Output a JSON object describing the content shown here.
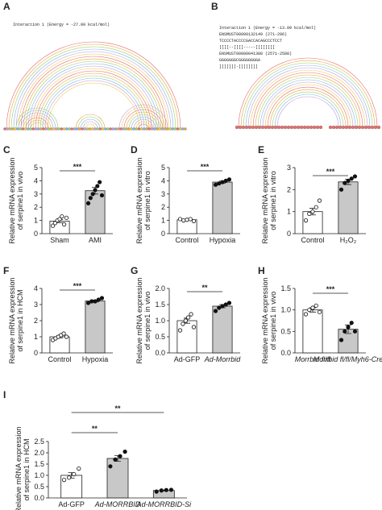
{
  "panel_a": {
    "label": "A",
    "text": [
      "Interaction 1 (Energy = -27.09 kcal/mol)"
    ]
  },
  "panel_b": {
    "label": "B",
    "text": [
      "Interaction 1 (Energy = -13.09 kcal/mol)",
      "ENSMUST00000132149 (271-296)",
      "TCCCCTACCCCGACCACAGCCCTCCT",
      "[[[[--[[[[-----[[[[[[[[",
      "ENSMUST00000041388 (2571-2588)",
      "GGGGGGGCGGGGGGGGA",
      "]]]]]]]-]]]]]]]]"
    ]
  },
  "chart_data": [
    {
      "type": "bar",
      "label": "C",
      "ylabel": [
        "Relative mRNA expression",
        "of serpine1 in vivo"
      ],
      "categories": [
        "Sham",
        "AMI"
      ],
      "values": [
        0.95,
        3.25
      ],
      "errors": [
        0.12,
        0.25
      ],
      "points": [
        [
          0.6,
          0.8,
          1.0,
          1.1,
          1.3,
          0.7,
          1.2
        ],
        [
          2.3,
          2.7,
          3.0,
          3.3,
          3.6,
          3.9,
          2.9
        ]
      ],
      "colors": [
        "#ffffff",
        "#c8c8c8"
      ],
      "ylim": [
        0,
        5
      ],
      "yticks": [
        0,
        1,
        2,
        3,
        4,
        5
      ],
      "significance": [
        {
          "from": 0,
          "to": 1,
          "label": "***"
        }
      ]
    },
    {
      "type": "bar",
      "label": "D",
      "ylabel": [
        "Relative mRNA expression",
        "of serpine1 in vitro"
      ],
      "categories": [
        "Control",
        "Hypoxia"
      ],
      "values": [
        1.05,
        3.9
      ],
      "errors": [
        0.05,
        0.08
      ],
      "points": [
        [
          1.1,
          1.0,
          1.05,
          1.1,
          0.95
        ],
        [
          3.7,
          3.8,
          3.9,
          4.0,
          4.1
        ]
      ],
      "colors": [
        "#ffffff",
        "#c8c8c8"
      ],
      "ylim": [
        0,
        5
      ],
      "yticks": [
        0,
        1,
        2,
        3,
        4,
        5
      ],
      "significance": [
        {
          "from": 0,
          "to": 1,
          "label": "***"
        }
      ]
    },
    {
      "type": "bar",
      "label": "E",
      "ylabel": [
        "Relative mRNA expression",
        "of serpine1 in vitro"
      ],
      "categories": [
        "Control",
        "H₂O₂"
      ],
      "values": [
        1.0,
        2.35
      ],
      "errors": [
        0.15,
        0.12
      ],
      "points": [
        [
          0.6,
          0.9,
          1.0,
          1.2,
          1.5
        ],
        [
          2.0,
          2.3,
          2.4,
          2.5,
          2.6
        ]
      ],
      "colors": [
        "#ffffff",
        "#c8c8c8"
      ],
      "ylim": [
        0,
        3
      ],
      "yticks": [
        0,
        1,
        2,
        3
      ],
      "significance": [
        {
          "from": 0,
          "to": 1,
          "label": "***"
        }
      ]
    },
    {
      "type": "bar",
      "label": "F",
      "ylabel": [
        "Relative mRNA expression",
        "of serpine1 in HCM"
      ],
      "categories": [
        "Control",
        "Hypoxia"
      ],
      "values": [
        1.0,
        3.22
      ],
      "errors": [
        0.08,
        0.06
      ],
      "points": [
        [
          0.8,
          0.9,
          1.0,
          1.1,
          1.2,
          1.0
        ],
        [
          3.1,
          3.2,
          3.2,
          3.3,
          3.4
        ]
      ],
      "colors": [
        "#ffffff",
        "#c8c8c8"
      ],
      "ylim": [
        0,
        4
      ],
      "yticks": [
        0,
        1,
        2,
        3,
        4
      ],
      "significance": [
        {
          "from": 0,
          "to": 1,
          "label": "***"
        }
      ]
    },
    {
      "type": "bar",
      "label": "G",
      "ylabel": [
        "Relative mRNA expression",
        "of serpine1 in vivo"
      ],
      "categories": [
        "Ad-GFP",
        "Ad-Morrbid"
      ],
      "values": [
        1.0,
        1.45
      ],
      "errors": [
        0.08,
        0.05
      ],
      "points": [
        [
          0.7,
          0.9,
          1.0,
          1.1,
          1.2,
          0.8
        ],
        [
          1.3,
          1.4,
          1.45,
          1.5,
          1.55
        ]
      ],
      "colors": [
        "#ffffff",
        "#c8c8c8"
      ],
      "ylim": [
        0,
        2
      ],
      "yticks": [
        {
          "value": 0,
          "label": "0.0"
        },
        {
          "value": 0.5,
          "label": "0.5"
        },
        {
          "value": 1,
          "label": "1.0"
        },
        {
          "value": 1.5,
          "label": "1.5"
        },
        {
          "value": 2,
          "label": "2.0"
        }
      ],
      "significance": [
        {
          "from": 0,
          "to": 1,
          "label": "**"
        }
      ]
    },
    {
      "type": "bar",
      "label": "H",
      "ylabel": [
        "Relative mRNA expression",
        "of serpine1 in vivo"
      ],
      "categories": [
        "Morrbid fl/fl",
        "Morrbid fl/fl/Myh6-Cre"
      ],
      "values": [
        1.0,
        0.55
      ],
      "errors": [
        0.05,
        0.1
      ],
      "points": [
        [
          0.9,
          1.0,
          1.05,
          1.1,
          0.95
        ],
        [
          0.3,
          0.5,
          0.6,
          0.7,
          0.5
        ]
      ],
      "colors": [
        "#ffffff",
        "#c8c8c8"
      ],
      "ylim": [
        0,
        1.5
      ],
      "yticks": [
        {
          "value": 0,
          "label": "0.0"
        },
        {
          "value": 0.5,
          "label": "0.5"
        },
        {
          "value": 1,
          "label": "1.0"
        },
        {
          "value": 1.5,
          "label": "1.5"
        }
      ],
      "significance": [
        {
          "from": 0,
          "to": 1,
          "label": "***"
        }
      ]
    },
    {
      "type": "bar",
      "label": "I",
      "ylabel": [
        "Relative mRNA expression",
        "of serpine1 in HCM"
      ],
      "categories": [
        "Ad-GFP",
        "Ad-MORRBID",
        "Ad-MORRBID-Si"
      ],
      "values": [
        1.0,
        1.75,
        0.33
      ],
      "errors": [
        0.12,
        0.13,
        0.02
      ],
      "points": [
        [
          0.8,
          0.9,
          1.05,
          1.3
        ],
        [
          1.4,
          1.7,
          1.85,
          2.05
        ],
        [
          0.28,
          0.33,
          0.35,
          0.36
        ]
      ],
      "colors": [
        "#ffffff",
        "#c8c8c8",
        "#c8c8c8"
      ],
      "ylim": [
        0,
        2.5
      ],
      "yticks": [
        {
          "value": 0,
          "label": "0.0"
        },
        {
          "value": 0.5,
          "label": "0.5"
        },
        {
          "value": 1,
          "label": "1.0"
        },
        {
          "value": 1.5,
          "label": "1.5"
        },
        {
          "value": 2,
          "label": "2.0"
        },
        {
          "value": 2.5,
          "label": "2.5"
        }
      ],
      "significance": [
        {
          "from": 0,
          "to": 2,
          "label": "**"
        },
        {
          "from": 0,
          "to": 1,
          "label": "**"
        }
      ]
    }
  ]
}
